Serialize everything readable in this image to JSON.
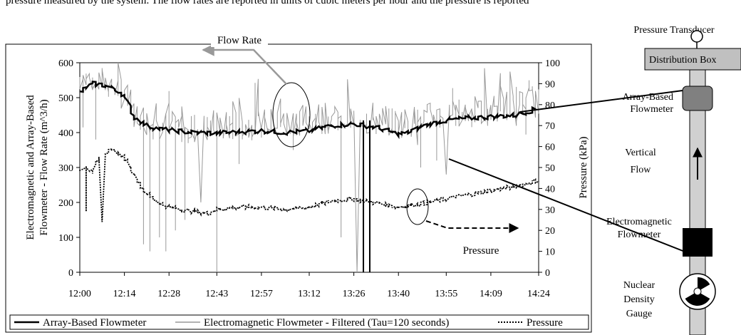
{
  "top_caption": "pressure measured by the system. The flow rates are reported in units of cubic meters per hour and the pressure is reported",
  "chart_data": {
    "type": "line",
    "x_ticks": [
      "12:00",
      "12:14",
      "12:28",
      "12:43",
      "12:57",
      "13:12",
      "13:26",
      "13:40",
      "13:55",
      "14:09",
      "14:24"
    ],
    "x_start": "12:00",
    "x_end": "14:24",
    "ylabel_left": "Electromagnetic and Array-Based Flowmeter - Flow Rate (m^3/h)",
    "ylabel_left_line1": "Electromagnetic and Array-Based",
    "ylabel_left_line2": "Flowmeter - Flow Rate (m^3/h)",
    "ylim_left": [
      0,
      600
    ],
    "yticks_left": [
      "0",
      "100",
      "200",
      "300",
      "400",
      "500",
      "600"
    ],
    "ylabel_right": "Pressure (kPa)",
    "ylim_right": [
      0,
      100
    ],
    "yticks_right": [
      "0",
      "10",
      "20",
      "30",
      "40",
      "50",
      "60",
      "70",
      "80",
      "90",
      "100"
    ],
    "legend_position": "bottom",
    "series": [
      {
        "name": "Array-Based Flowmeter",
        "axis": "left",
        "color": "#000000",
        "style": "solid-thick",
        "x": [
          "12:00",
          "12:04",
          "12:08",
          "12:12",
          "12:14",
          "12:17",
          "12:21",
          "12:25",
          "12:30",
          "12:36",
          "12:43",
          "12:50",
          "12:57",
          "13:05",
          "13:12",
          "13:19",
          "13:26",
          "13:33",
          "13:40",
          "13:43",
          "13:48",
          "13:55",
          "14:00",
          "14:09",
          "14:17",
          "14:24"
        ],
        "values": [
          515,
          540,
          535,
          520,
          505,
          445,
          420,
          410,
          405,
          400,
          398,
          402,
          405,
          400,
          405,
          420,
          425,
          415,
          395,
          400,
          420,
          435,
          440,
          445,
          450,
          470
        ]
      },
      {
        "name": "Electromagnetic Flowmeter - Filtered (Tau=120 seconds)",
        "axis": "left",
        "color": "#999999",
        "style": "solid-thin",
        "x": [
          "12:00",
          "12:04",
          "12:08",
          "12:12",
          "12:14",
          "12:17",
          "12:21",
          "12:25",
          "12:30",
          "12:36",
          "12:43",
          "12:50",
          "12:57",
          "13:05",
          "13:12",
          "13:19",
          "13:26",
          "13:33",
          "13:40",
          "13:43",
          "13:48",
          "13:55",
          "14:00",
          "14:09",
          "14:17",
          "14:24"
        ],
        "values": [
          560,
          550,
          545,
          525,
          505,
          460,
          430,
          420,
          415,
          410,
          415,
          420,
          425,
          430,
          440,
          440,
          440,
          435,
          430,
          430,
          440,
          450,
          455,
          465,
          470,
          500
        ],
        "dropouts": [
          [
            "12:01",
            415
          ],
          [
            "12:05",
            380
          ],
          [
            "12:20",
            80
          ],
          [
            "12:22",
            60
          ],
          [
            "12:25",
            100
          ],
          [
            "12:27",
            60
          ],
          [
            "12:30",
            120
          ],
          [
            "12:33",
            150
          ],
          [
            "12:38",
            200
          ],
          [
            "12:43",
            0
          ],
          [
            "12:50",
            310
          ],
          [
            "13:07",
            350
          ],
          [
            "13:22",
            100
          ],
          [
            "13:27",
            0
          ],
          [
            "13:31",
            0
          ],
          [
            "13:47",
            300
          ],
          [
            "13:52",
            320
          ],
          [
            "13:55",
            280
          ]
        ]
      },
      {
        "name": "Pressure",
        "axis": "right",
        "color": "#000000",
        "style": "dotted",
        "x": [
          "12:00",
          "12:02",
          "12:04",
          "12:06",
          "12:08",
          "12:10",
          "12:12",
          "12:14",
          "12:17",
          "12:20",
          "12:24",
          "12:28",
          "12:36",
          "12:40",
          "12:43",
          "12:50",
          "12:57",
          "13:05",
          "13:12",
          "13:19",
          "13:26",
          "13:33",
          "13:40",
          "13:48",
          "13:55",
          "14:02",
          "14:09",
          "14:17",
          "14:24"
        ],
        "values": [
          49,
          50,
          48,
          55,
          57,
          58,
          57,
          55,
          47,
          39,
          34,
          31,
          29,
          28,
          30,
          31,
          31,
          30,
          31,
          34,
          35,
          33,
          31,
          33,
          35,
          37,
          39,
          41,
          44
        ],
        "dropouts": [
          [
            "12:02",
            29
          ],
          [
            "12:07",
            24
          ]
        ]
      }
    ],
    "annotations": {
      "flow_rate": "Flow Rate",
      "pressure": "Pressure"
    }
  },
  "schematic": {
    "pressure_transducer": "Pressure Transducer",
    "distribution_box": "Distribution Box",
    "array_flowmeter_line1": "Array-Based",
    "array_flowmeter_line2": "Flowmeter",
    "vertical_flow_line1": "Vertical",
    "vertical_flow_line2": "Flow",
    "em_flowmeter_line1": "Electromagnetic",
    "em_flowmeter_line2": "Flowmeter",
    "density_line1": "Nuclear",
    "density_line2": "Density",
    "density_line3": "Gauge"
  }
}
